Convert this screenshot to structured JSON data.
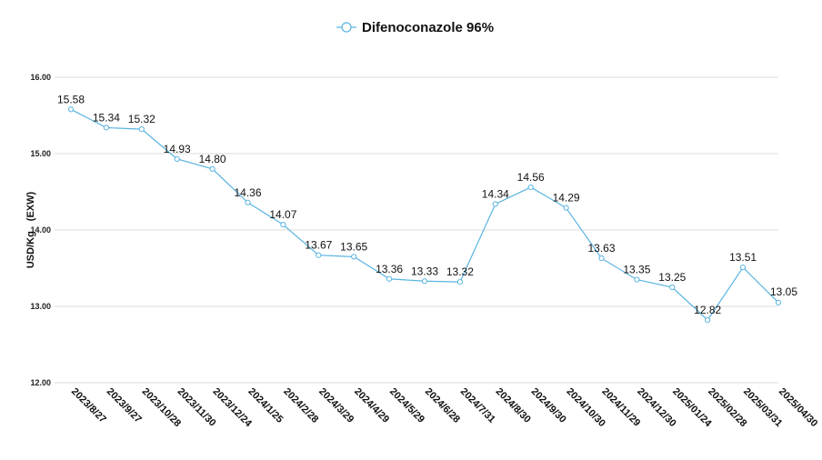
{
  "chart_data": {
    "type": "line",
    "legend_position": "top-center",
    "grid": true,
    "ylabel": "USD/Kg　(EXW)",
    "ylim": [
      12.0,
      16.0
    ],
    "yticks": [
      "12.00",
      "13.00",
      "14.00",
      "15.00",
      "16.00"
    ],
    "categories": [
      "2023/8/27",
      "2023/9/27",
      "2023/10/28",
      "2023/11/30",
      "2023/12/24",
      "2024/1/25",
      "2024/2/28",
      "2024/3/29",
      "2024/4/29",
      "2024/5/29",
      "2024/6/28",
      "2024/7/31",
      "2024/8/30",
      "2024/9/30",
      "2024/10/30",
      "2024/11/29",
      "2024/12/30",
      "2025/01/24",
      "2025/02/28",
      "2025/03/31",
      "2025/04/30"
    ],
    "series": [
      {
        "name": "Difenoconazole 96%",
        "color": "#5ab4e0",
        "values": [
          15.58,
          15.34,
          15.32,
          14.93,
          14.8,
          14.36,
          14.07,
          13.67,
          13.65,
          13.36,
          13.33,
          13.32,
          14.34,
          14.56,
          14.29,
          13.63,
          13.35,
          13.25,
          12.82,
          13.51,
          13.05
        ],
        "labels": [
          "15.58",
          "15.34",
          "15.32",
          "14.93",
          "14.80",
          "14.36",
          "14.07",
          "13.67",
          "13.65",
          "13.36",
          "13.33",
          "13.32",
          "14.34",
          "14.56",
          "14.29",
          "13.63",
          "13.35",
          "13.25",
          "12.82",
          "13.51",
          "13.05"
        ]
      }
    ]
  }
}
